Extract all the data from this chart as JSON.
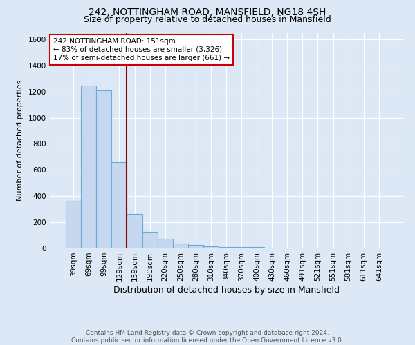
{
  "title1": "242, NOTTINGHAM ROAD, MANSFIELD, NG18 4SH",
  "title2": "Size of property relative to detached houses in Mansfield",
  "xlabel": "Distribution of detached houses by size in Mansfield",
  "ylabel": "Number of detached properties",
  "footer1": "Contains HM Land Registry data © Crown copyright and database right 2024.",
  "footer2": "Contains public sector information licensed under the Open Government Licence v3.0.",
  "bar_labels": [
    "39sqm",
    "69sqm",
    "99sqm",
    "129sqm",
    "159sqm",
    "190sqm",
    "220sqm",
    "250sqm",
    "280sqm",
    "310sqm",
    "340sqm",
    "370sqm",
    "400sqm",
    "430sqm",
    "460sqm",
    "491sqm",
    "521sqm",
    "551sqm",
    "581sqm",
    "611sqm",
    "641sqm"
  ],
  "bar_values": [
    363,
    1247,
    1207,
    660,
    265,
    127,
    72,
    38,
    27,
    17,
    13,
    10,
    10,
    0,
    0,
    0,
    0,
    0,
    0,
    0,
    0
  ],
  "bar_color": "#c5d8f0",
  "bar_edge_color": "#6aaad4",
  "ylim": [
    0,
    1650
  ],
  "yticks": [
    0,
    200,
    400,
    600,
    800,
    1000,
    1200,
    1400,
    1600
  ],
  "vline_color": "#8b0000",
  "annotation_text": "242 NOTTINGHAM ROAD: 151sqm\n← 83% of detached houses are smaller (3,326)\n17% of semi-detached houses are larger (661) →",
  "annotation_box_color": "#ffffff",
  "annotation_box_edge_color": "#cc0000",
  "bg_color": "#dce8f5",
  "plot_bg_color": "#dce8f5",
  "grid_color": "#ffffff",
  "title1_fontsize": 10,
  "title2_fontsize": 9,
  "xlabel_fontsize": 9,
  "ylabel_fontsize": 8,
  "tick_fontsize": 7.5,
  "footer_fontsize": 6.5
}
